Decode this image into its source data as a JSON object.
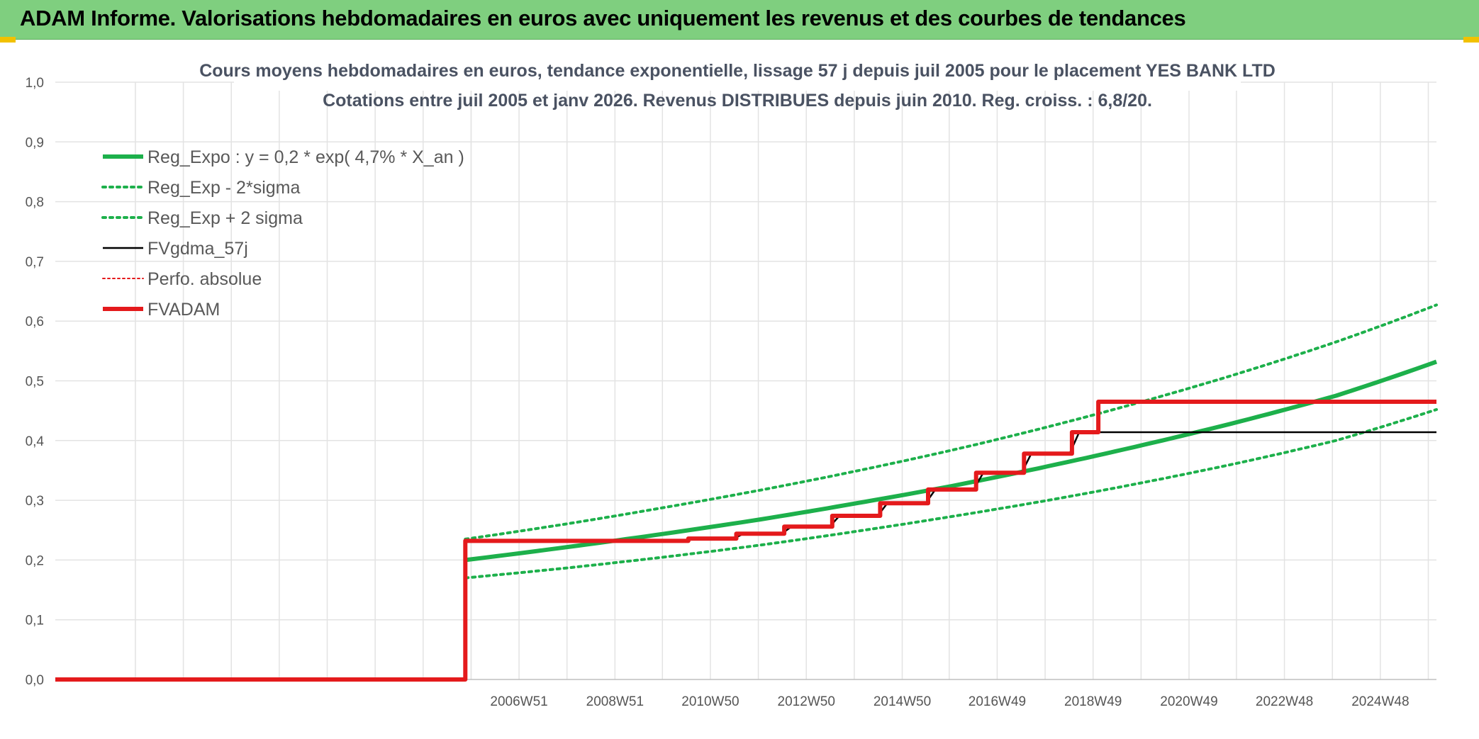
{
  "header": {
    "title": "ADAM Informe. Valorisations hebdomadaires en euros avec uniquement les revenus et des courbes de tendances"
  },
  "chart_data": {
    "type": "line",
    "title": "Cours moyens hebdomadaires en euros, tendance exponentielle, lissage 57 j depuis juil 2005 pour le placement YES BANK LTD",
    "subtitle": "Cotations entre juil 2005 et janv 2026. Revenus DISTRIBUES depuis juin 2010. Reg. croiss. : 6,8/20.",
    "ylim": [
      0,
      1.0
    ],
    "y_ticks": [
      "0,0",
      "0,1",
      "0,2",
      "0,3",
      "0,4",
      "0,5",
      "0,6",
      "0,7",
      "0,8",
      "0,9",
      "1,0"
    ],
    "x_range": [
      1997.3,
      2026.1
    ],
    "x_ticks": [
      {
        "label": "2006W51",
        "x": 2006.97
      },
      {
        "label": "2008W51",
        "x": 2008.97
      },
      {
        "label": "2010W50",
        "x": 2010.96
      },
      {
        "label": "2012W50",
        "x": 2012.96
      },
      {
        "label": "2014W50",
        "x": 2014.96
      },
      {
        "label": "2016W49",
        "x": 2016.94
      },
      {
        "label": "2018W49",
        "x": 2018.94
      },
      {
        "label": "2020W49",
        "x": 2020.94
      },
      {
        "label": "2022W48",
        "x": 2022.93
      },
      {
        "label": "2024W48",
        "x": 2024.93
      }
    ],
    "grid": true,
    "legend_position": "top-left",
    "series": [
      {
        "name": "Reg_Expo : y = 0,2 * exp( 4,7% *  X_an )",
        "color": "#1db04b",
        "style": "solid-thick",
        "x": [
          2005.85,
          2008,
          2010,
          2012,
          2014,
          2016,
          2018,
          2020,
          2022,
          2024,
          2026.1
        ],
        "y": [
          0.2,
          0.222,
          0.244,
          0.268,
          0.295,
          0.324,
          0.357,
          0.393,
          0.432,
          0.475,
          0.532
        ]
      },
      {
        "name": "Reg_Exp - 2*sigma",
        "color": "#1db04b",
        "style": "dotted",
        "x": [
          2005.85,
          2008,
          2010,
          2012,
          2014,
          2016,
          2018,
          2020,
          2022,
          2024,
          2026.1
        ],
        "y": [
          0.17,
          0.187,
          0.205,
          0.225,
          0.248,
          0.273,
          0.3,
          0.33,
          0.363,
          0.4,
          0.452
        ]
      },
      {
        "name": "Reg_Exp + 2 sigma",
        "color": "#1db04b",
        "style": "dotted",
        "x": [
          2005.85,
          2008,
          2010,
          2012,
          2014,
          2016,
          2018,
          2020,
          2022,
          2024,
          2026.1
        ],
        "y": [
          0.235,
          0.261,
          0.288,
          0.317,
          0.349,
          0.384,
          0.423,
          0.466,
          0.513,
          0.565,
          0.627
        ]
      },
      {
        "name": "FVgdma_57j",
        "color": "#000000",
        "style": "solid",
        "x": [
          1997.3,
          2005.85,
          2005.85,
          2010.45,
          2010.65,
          2011.45,
          2011.65,
          2012.45,
          2012.65,
          2013.45,
          2013.65,
          2014.45,
          2014.65,
          2015.45,
          2015.65,
          2016.45,
          2016.65,
          2017.45,
          2017.65,
          2018.45,
          2018.65,
          2026.1
        ],
        "y": [
          0,
          0,
          0.232,
          0.232,
          0.236,
          0.236,
          0.244,
          0.244,
          0.256,
          0.256,
          0.274,
          0.274,
          0.295,
          0.295,
          0.318,
          0.318,
          0.346,
          0.346,
          0.378,
          0.378,
          0.414,
          0.414
        ]
      },
      {
        "name": "Perfo. absolue",
        "color": "#e41a1c",
        "style": "dotted-thin",
        "x": [],
        "y": []
      },
      {
        "name": "FVADAM",
        "color": "#e41a1c",
        "style": "solid-thick",
        "x": [
          1997.3,
          2005.85,
          2005.85,
          2010.5,
          2010.5,
          2011.5,
          2011.5,
          2012.5,
          2012.5,
          2013.5,
          2013.5,
          2014.5,
          2014.5,
          2015.5,
          2015.5,
          2016.5,
          2016.5,
          2017.5,
          2017.5,
          2018.5,
          2018.5,
          2019.05,
          2019.05,
          2026.1
        ],
        "y": [
          0,
          0,
          0.232,
          0.232,
          0.236,
          0.236,
          0.244,
          0.244,
          0.256,
          0.256,
          0.274,
          0.274,
          0.295,
          0.295,
          0.318,
          0.318,
          0.346,
          0.346,
          0.378,
          0.378,
          0.414,
          0.414,
          0.465,
          0.465
        ]
      }
    ]
  }
}
